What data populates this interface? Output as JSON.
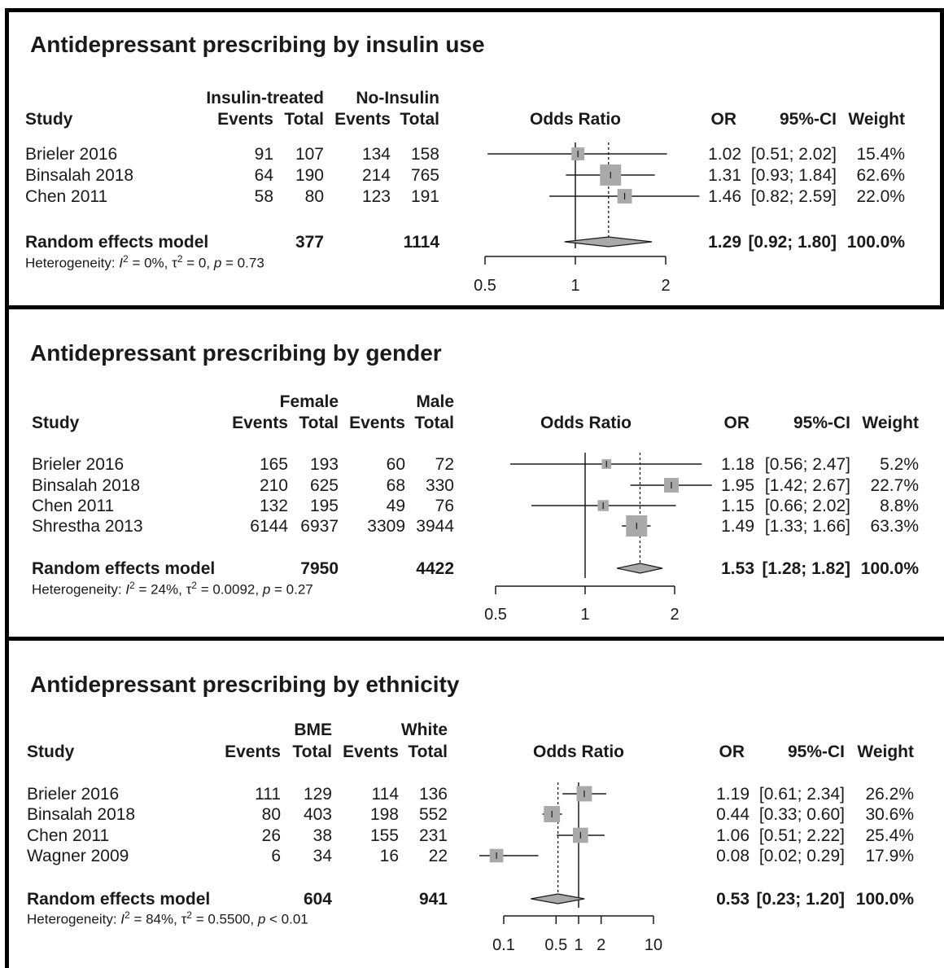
{
  "chart_data": [
    {
      "type": "forest",
      "title": "Antidepressant prescribing by insulin use",
      "group_labels": [
        "Insulin-treated",
        "No-Insulin"
      ],
      "headers": {
        "study": "Study",
        "events": "Events",
        "total": "Total",
        "plot": "Odds Ratio",
        "or": "OR",
        "ci": "95%-CI",
        "weight": "Weight"
      },
      "studies": [
        {
          "study": "Brieler 2016",
          "e1": "91",
          "t1": "107",
          "e2": "134",
          "t2": "158",
          "or": 1.02,
          "lo": 0.51,
          "hi": 2.02,
          "or_text": "1.02",
          "ci_text": "[0.51; 2.02]",
          "weight": 15.4,
          "weight_text": "15.4%"
        },
        {
          "study": "Binsalah 2018",
          "e1": "64",
          "t1": "190",
          "e2": "214",
          "t2": "765",
          "or": 1.31,
          "lo": 0.93,
          "hi": 1.84,
          "or_text": "1.31",
          "ci_text": "[0.93; 1.84]",
          "weight": 62.6,
          "weight_text": "62.6%"
        },
        {
          "study": "Chen 2011",
          "e1": "58",
          "t1": "80",
          "e2": "123",
          "t2": "191",
          "or": 1.46,
          "lo": 0.82,
          "hi": 2.59,
          "or_text": "1.46",
          "ci_text": "[0.82; 2.59]",
          "weight": 22.0,
          "weight_text": "22.0%"
        }
      ],
      "model": {
        "label": "Random effects model",
        "t1": "377",
        "t2": "1114",
        "or": 1.29,
        "lo": 0.92,
        "hi": 1.8,
        "or_text": "1.29",
        "ci_text": "[0.92; 1.80]",
        "weight_text": "100.0%"
      },
      "heterogeneity": {
        "i2": "0%",
        "tau2": "0",
        "p": "= 0.73"
      },
      "axis": {
        "ticks": [
          0.5,
          1,
          2
        ],
        "tick_labels": [
          "0.5",
          "1",
          "2"
        ],
        "xlim": [
          0.5,
          2
        ],
        "scale": "log"
      }
    },
    {
      "type": "forest",
      "title": "Antidepressant prescribing by gender",
      "group_labels": [
        "Female",
        "Male"
      ],
      "headers": {
        "study": "Study",
        "events": "Events",
        "total": "Total",
        "plot": "Odds Ratio",
        "or": "OR",
        "ci": "95%-CI",
        "weight": "Weight"
      },
      "studies": [
        {
          "study": "Brieler 2016",
          "e1": "165",
          "t1": "193",
          "e2": "60",
          "t2": "72",
          "or": 1.18,
          "lo": 0.56,
          "hi": 2.47,
          "or_text": "1.18",
          "ci_text": "[0.56; 2.47]",
          "weight": 5.2,
          "weight_text": "5.2%"
        },
        {
          "study": "Binsalah 2018",
          "e1": "210",
          "t1": "625",
          "e2": "68",
          "t2": "330",
          "or": 1.95,
          "lo": 1.42,
          "hi": 2.67,
          "or_text": "1.95",
          "ci_text": "[1.42; 2.67]",
          "weight": 22.7,
          "weight_text": "22.7%"
        },
        {
          "study": "Chen 2011",
          "e1": "132",
          "t1": "195",
          "e2": "49",
          "t2": "76",
          "or": 1.15,
          "lo": 0.66,
          "hi": 2.02,
          "or_text": "1.15",
          "ci_text": "[0.66; 2.02]",
          "weight": 8.8,
          "weight_text": "8.8%"
        },
        {
          "study": "Shrestha 2013",
          "e1": "6144",
          "t1": "6937",
          "e2": "3309",
          "t2": "3944",
          "or": 1.49,
          "lo": 1.33,
          "hi": 1.66,
          "or_text": "1.49",
          "ci_text": "[1.33; 1.66]",
          "weight": 63.3,
          "weight_text": "63.3%"
        }
      ],
      "model": {
        "label": "Random effects model",
        "t1": "7950",
        "t2": "4422",
        "or": 1.53,
        "lo": 1.28,
        "hi": 1.82,
        "or_text": "1.53",
        "ci_text": "[1.28; 1.82]",
        "weight_text": "100.0%"
      },
      "heterogeneity": {
        "i2": "24%",
        "tau2": "0.0092",
        "p": "= 0.27"
      },
      "axis": {
        "ticks": [
          0.5,
          1,
          2
        ],
        "tick_labels": [
          "0.5",
          "1",
          "2"
        ],
        "xlim": [
          0.5,
          2
        ],
        "scale": "log"
      }
    },
    {
      "type": "forest",
      "title": "Antidepressant prescribing by ethnicity",
      "group_labels": [
        "BME",
        "White"
      ],
      "headers": {
        "study": "Study",
        "events": "Events",
        "total": "Total",
        "plot": "Odds Ratio",
        "or": "OR",
        "ci": "95%-CI",
        "weight": "Weight"
      },
      "studies": [
        {
          "study": "Brieler 2016",
          "e1": "111",
          "t1": "129",
          "e2": "114",
          "t2": "136",
          "or": 1.19,
          "lo": 0.61,
          "hi": 2.34,
          "or_text": "1.19",
          "ci_text": "[0.61; 2.34]",
          "weight": 26.2,
          "weight_text": "26.2%"
        },
        {
          "study": "Binsalah 2018",
          "e1": "80",
          "t1": "403",
          "e2": "198",
          "t2": "552",
          "or": 0.44,
          "lo": 0.33,
          "hi": 0.6,
          "or_text": "0.44",
          "ci_text": "[0.33; 0.60]",
          "weight": 30.6,
          "weight_text": "30.6%"
        },
        {
          "study": "Chen 2011",
          "e1": "26",
          "t1": "38",
          "e2": "155",
          "t2": "231",
          "or": 1.06,
          "lo": 0.51,
          "hi": 2.22,
          "or_text": "1.06",
          "ci_text": "[0.51; 2.22]",
          "weight": 25.4,
          "weight_text": "25.4%"
        },
        {
          "study": "Wagner 2009",
          "e1": "6",
          "t1": "34",
          "e2": "16",
          "t2": "22",
          "or": 0.08,
          "lo": 0.02,
          "hi": 0.29,
          "or_text": "0.08",
          "ci_text": "[0.02; 0.29]",
          "weight": 17.9,
          "weight_text": "17.9%"
        }
      ],
      "model": {
        "label": "Random effects model",
        "t1": "604",
        "t2": "941",
        "or": 0.53,
        "lo": 0.23,
        "hi": 1.2,
        "or_text": "0.53",
        "ci_text": "[0.23; 1.20]",
        "weight_text": "100.0%"
      },
      "heterogeneity": {
        "i2": "84%",
        "tau2": "0.5500",
        "p": "< 0.01"
      },
      "axis": {
        "ticks": [
          0.1,
          0.5,
          1,
          2,
          10
        ],
        "tick_labels": [
          "0.1",
          "0.5",
          "1",
          "2",
          "10"
        ],
        "xlim": [
          0.1,
          10
        ],
        "scale": "log"
      }
    }
  ]
}
